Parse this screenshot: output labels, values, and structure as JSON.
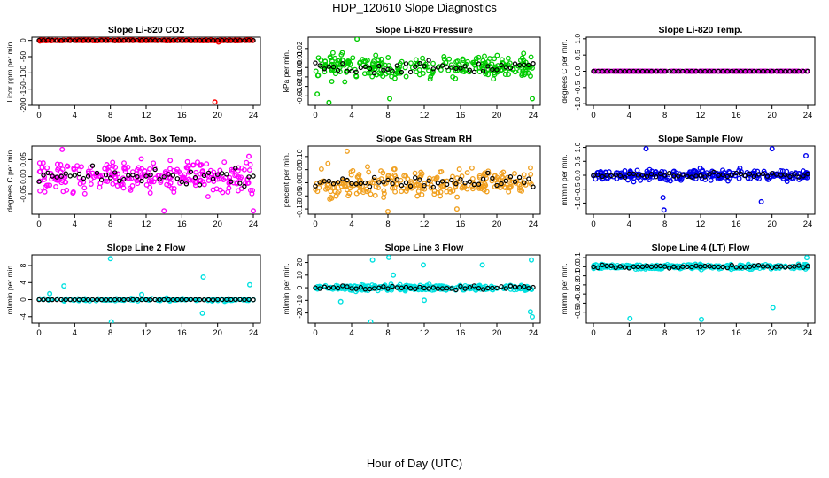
{
  "title": "HDP_120610  Slope Diagnostics",
  "xlabel": "Hour of Day (UTC)",
  "chart_data": [
    {
      "type": "scatter",
      "title": "Slope Li-820 CO2",
      "ylabel": "Licor ppm per min.",
      "xlim": [
        0,
        24
      ],
      "xticks": [
        0,
        4,
        8,
        12,
        16,
        20,
        24
      ],
      "ylim": [
        -200,
        10
      ],
      "yticks": [
        0,
        -50,
        -100,
        -150,
        -200
      ],
      "ytick_labels": [
        "0",
        "-50",
        "-100",
        "-150",
        "-200"
      ],
      "color": "#ff0000",
      "center": 0,
      "spread": 0.8,
      "density": "dense",
      "mean_spread": 0.5,
      "outliers": [
        {
          "x": 19.7,
          "y": -190
        },
        {
          "x": 20.1,
          "y": -5
        },
        {
          "x": 0.1,
          "y": -2
        }
      ]
    },
    {
      "type": "scatter",
      "title": "Slope Li-820 Pressure",
      "ylabel": "kPa per min.",
      "xlim": [
        0,
        24
      ],
      "xticks": [
        0,
        4,
        8,
        12,
        16,
        20,
        24
      ],
      "ylim": [
        -0.04,
        0.032
      ],
      "yticks": [
        -0.03,
        -0.02,
        -0.01,
        0.0,
        0.01,
        0.02
      ],
      "ytick_labels": [
        "-0.03",
        "-0.02",
        "-0.01",
        "0.00",
        "0.01",
        "0.02"
      ],
      "color": "#00cc00",
      "center": 0.0,
      "spread": 0.012,
      "density": "dense",
      "mean_spread": 0.006,
      "outliers": [
        {
          "x": 0.2,
          "y": -0.028
        },
        {
          "x": 1.5,
          "y": -0.037
        },
        {
          "x": 4.6,
          "y": 0.03
        },
        {
          "x": 8.2,
          "y": -0.033
        },
        {
          "x": 23.9,
          "y": -0.033
        }
      ]
    },
    {
      "type": "scatter",
      "title": "Slope Li-820 Temp.",
      "ylabel": "degrees C per min.",
      "xlim": [
        0,
        24
      ],
      "xticks": [
        0,
        4,
        8,
        12,
        16,
        20,
        24
      ],
      "ylim": [
        -1.05,
        1.05
      ],
      "yticks": [
        -1.0,
        -0.5,
        0.0,
        0.5,
        1.0
      ],
      "ytick_labels": [
        "-1.0",
        "-0.5",
        "0.0",
        "0.5",
        "1.0"
      ],
      "color": "#dd00dd",
      "center": 0.0,
      "spread": 0.0,
      "density": "dense",
      "mean_spread": 0.0,
      "outliers": []
    },
    {
      "type": "scatter",
      "title": "Slope Amb. Box Temp.",
      "ylabel": "degrees C per min.",
      "xlim": [
        0,
        24
      ],
      "xticks": [
        0,
        4,
        8,
        12,
        16,
        20,
        24
      ],
      "ylim": [
        -0.11,
        0.09
      ],
      "yticks": [
        -0.05,
        0.0,
        0.05
      ],
      "ytick_labels": [
        "-0.05",
        "0.00",
        "0.05"
      ],
      "color": "#ff00ff",
      "center": 0.0,
      "spread": 0.045,
      "density": "dense",
      "mean_spread": 0.022,
      "outliers": [
        {
          "x": 2.6,
          "y": 0.08
        },
        {
          "x": 14.0,
          "y": -0.1
        },
        {
          "x": 24.0,
          "y": -0.1
        },
        {
          "x": 23.5,
          "y": 0.06
        }
      ]
    },
    {
      "type": "scatter",
      "title": "Slope Gas Stream RH",
      "ylabel": "percent per min.",
      "xlim": [
        0,
        24
      ],
      "xticks": [
        0,
        4,
        8,
        12,
        16,
        20,
        24
      ],
      "ylim": [
        -0.12,
        0.14
      ],
      "yticks": [
        -0.1,
        -0.05,
        0.0,
        0.05,
        0.1
      ],
      "ytick_labels": [
        "-0.10",
        "-0.05",
        "0.00",
        "0.05",
        "0.10"
      ],
      "color": "#f0a020",
      "center": 0.0,
      "spread": 0.05,
      "density": "dense",
      "mean_spread": 0.03,
      "outliers": [
        {
          "x": 3.5,
          "y": 0.12
        },
        {
          "x": 8.0,
          "y": -0.11
        },
        {
          "x": 15.6,
          "y": -0.1
        }
      ]
    },
    {
      "type": "scatter",
      "title": "Slope Sample Flow",
      "ylabel": "ml/min per min.",
      "xlim": [
        0,
        24
      ],
      "xticks": [
        0,
        4,
        8,
        12,
        16,
        20,
        24
      ],
      "ylim": [
        -1.4,
        1.05
      ],
      "yticks": [
        -1.0,
        -0.5,
        0.0,
        0.5,
        1.0
      ],
      "ytick_labels": [
        "-1.0",
        "-0.5",
        "0.0",
        "0.5",
        "1.0"
      ],
      "color": "#0000ee",
      "center": 0.0,
      "spread": 0.18,
      "density": "dense",
      "mean_spread": 0.1,
      "outliers": [
        {
          "x": 5.9,
          "y": 0.95
        },
        {
          "x": 7.8,
          "y": -0.8
        },
        {
          "x": 7.9,
          "y": -1.25
        },
        {
          "x": 20.0,
          "y": 0.95
        },
        {
          "x": 18.8,
          "y": -0.95
        },
        {
          "x": 23.8,
          "y": 0.7
        }
      ]
    },
    {
      "type": "scatter",
      "title": "Slope Line 2 Flow",
      "ylabel": "ml/min per min.",
      "xlim": [
        0,
        24
      ],
      "xticks": [
        0,
        4,
        8,
        12,
        16,
        20,
        24
      ],
      "ylim": [
        -5.5,
        10.5
      ],
      "yticks": [
        -4,
        0,
        4,
        8
      ],
      "ytick_labels": [
        "-4",
        "0",
        "4",
        "8"
      ],
      "color": "#00e0e0",
      "center": 0.0,
      "spread": 0.3,
      "density": "sparse",
      "mean_spread": 0.05,
      "outliers": [
        {
          "x": 8.0,
          "y": 9.6
        },
        {
          "x": 8.1,
          "y": -5.2
        },
        {
          "x": 18.4,
          "y": 5.3
        },
        {
          "x": 18.3,
          "y": -3.2
        },
        {
          "x": 2.8,
          "y": 3.2
        },
        {
          "x": 23.6,
          "y": 3.5
        },
        {
          "x": 1.2,
          "y": 1.4
        },
        {
          "x": 11.5,
          "y": 1.2
        }
      ]
    },
    {
      "type": "scatter",
      "title": "Slope Line 3 Flow",
      "ylabel": "ml/min per min.",
      "xlim": [
        0,
        24
      ],
      "xticks": [
        0,
        4,
        8,
        12,
        16,
        20,
        24
      ],
      "ylim": [
        -28,
        26
      ],
      "yticks": [
        -20,
        -10,
        0,
        10,
        20
      ],
      "ytick_labels": [
        "-20",
        "-10",
        "0",
        "10",
        "20"
      ],
      "color": "#00e0e0",
      "center": 0.0,
      "spread": 2.2,
      "density": "dense",
      "mean_spread": 1.5,
      "outliers": [
        {
          "x": 6.1,
          "y": -27
        },
        {
          "x": 8.1,
          "y": 24
        },
        {
          "x": 6.3,
          "y": 22
        },
        {
          "x": 8.6,
          "y": 10
        },
        {
          "x": 11.9,
          "y": 18
        },
        {
          "x": 12.0,
          "y": -10
        },
        {
          "x": 18.4,
          "y": 18
        },
        {
          "x": 23.8,
          "y": 22
        },
        {
          "x": 23.9,
          "y": -23
        },
        {
          "x": 23.7,
          "y": -19
        },
        {
          "x": 2.8,
          "y": -11
        }
      ]
    },
    {
      "type": "scatter",
      "title": "Slope Line 4 (LT) Flow",
      "ylabel": "ml/min per min.",
      "xlim": [
        0,
        24
      ],
      "xticks": [
        0,
        4,
        8,
        12,
        16,
        20,
        24
      ],
      "ylim": [
        -0.62,
        0.13
      ],
      "yticks": [
        -0.5,
        -0.4,
        -0.3,
        -0.2,
        -0.1,
        0.0,
        0.1
      ],
      "ytick_labels": [
        "-0.5",
        "-0.4",
        "-0.3",
        "-0.2",
        "-0.1",
        "0.0",
        "0.1"
      ],
      "color": "#00e0e0",
      "center": 0.0,
      "spread": 0.025,
      "density": "dense",
      "mean_spread": 0.015,
      "outliers": [
        {
          "x": 4.1,
          "y": -0.57
        },
        {
          "x": 12.1,
          "y": -0.58
        },
        {
          "x": 20.1,
          "y": -0.45
        },
        {
          "x": 23.9,
          "y": 0.1
        }
      ]
    }
  ]
}
